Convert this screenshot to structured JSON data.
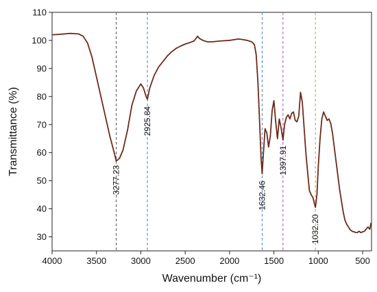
{
  "chart_data": {
    "type": "line",
    "title": "",
    "xlabel": "Wavenumber (cm⁻¹)",
    "ylabel": "Transmittance (%)",
    "xlim": [
      4000,
      400
    ],
    "x_reversed": true,
    "ylim": [
      25,
      110
    ],
    "x_ticks": [
      4000,
      3500,
      3000,
      2500,
      2000,
      1500,
      1000,
      500
    ],
    "y_ticks": [
      30,
      40,
      50,
      60,
      70,
      80,
      90,
      100,
      110
    ],
    "grid": false,
    "line_color": "#6b2a17",
    "series": [
      {
        "x": [
          4000,
          3900,
          3800,
          3700,
          3650,
          3600,
          3550,
          3500,
          3450,
          3400,
          3350,
          3300,
          3277.23,
          3240,
          3200,
          3150,
          3100,
          3050,
          3000,
          2970,
          2940,
          2925.84,
          2900,
          2850,
          2800,
          2750,
          2700,
          2650,
          2600,
          2550,
          2500,
          2450,
          2400,
          2360,
          2340,
          2300,
          2250,
          2200,
          2100,
          2000,
          1900,
          1850,
          1800,
          1750,
          1720,
          1700,
          1680,
          1660,
          1645,
          1632.46,
          1620,
          1600,
          1580,
          1560,
          1540,
          1520,
          1500,
          1480,
          1460,
          1440,
          1420,
          1397.91,
          1380,
          1360,
          1340,
          1320,
          1300,
          1280,
          1260,
          1240,
          1220,
          1200,
          1180,
          1160,
          1140,
          1120,
          1100,
          1080,
          1060,
          1045,
          1032.2,
          1015,
          1000,
          980,
          960,
          940,
          920,
          900,
          880,
          860,
          840,
          820,
          800,
          780,
          760,
          740,
          720,
          700,
          680,
          660,
          640,
          620,
          600,
          580,
          560,
          540,
          520,
          500,
          480,
          460,
          440,
          420,
          405
        ],
        "y": [
          102,
          102.2,
          102.5,
          102.3,
          101.5,
          99,
          94,
          87,
          80,
          73,
          66,
          60,
          57,
          58,
          61,
          68,
          77,
          82,
          84.5,
          83,
          80,
          79,
          83,
          87.5,
          90.5,
          92.5,
          94.5,
          96,
          97.2,
          98,
          98.7,
          99.2,
          99.8,
          101.5,
          100.7,
          100,
          99.5,
          99.5,
          99.8,
          100,
          100.5,
          100.3,
          100,
          99.5,
          98.5,
          95,
          85,
          70,
          58,
          52.5,
          59,
          68.5,
          67,
          62,
          66,
          75,
          78.5,
          71,
          65,
          72,
          69,
          64.5,
          70,
          72.5,
          73.5,
          72,
          74,
          74.5,
          71.5,
          71,
          73,
          81.5,
          78,
          69,
          60,
          53,
          46.5,
          45,
          44,
          42,
          40.5,
          45,
          55,
          65,
          72,
          74.5,
          73,
          71.5,
          72,
          70.5,
          67,
          62,
          57,
          52,
          47,
          43,
          39,
          36,
          34.5,
          33.5,
          32.5,
          32,
          31.8,
          31.6,
          31.5,
          32,
          31.5,
          31.8,
          32,
          32.8,
          33.5,
          32.7,
          35
        ]
      }
    ],
    "peaks": [
      {
        "x": 3277.23,
        "label": "3277.23",
        "color": "#555555",
        "label_y": 57
      },
      {
        "x": 2925.84,
        "label": "2925.84",
        "color": "#4a7fd0",
        "label_y": 78
      },
      {
        "x": 1632.46,
        "label": "1632.46",
        "color": "#4a7fd0",
        "label_y": 51.5
      },
      {
        "x": 1397.91,
        "label": "1397.91",
        "color": "#a855c8",
        "label_y": 64
      },
      {
        "x": 1032.2,
        "label": "1032.20",
        "color": "#c89a50",
        "label_y": 39.5
      }
    ]
  }
}
